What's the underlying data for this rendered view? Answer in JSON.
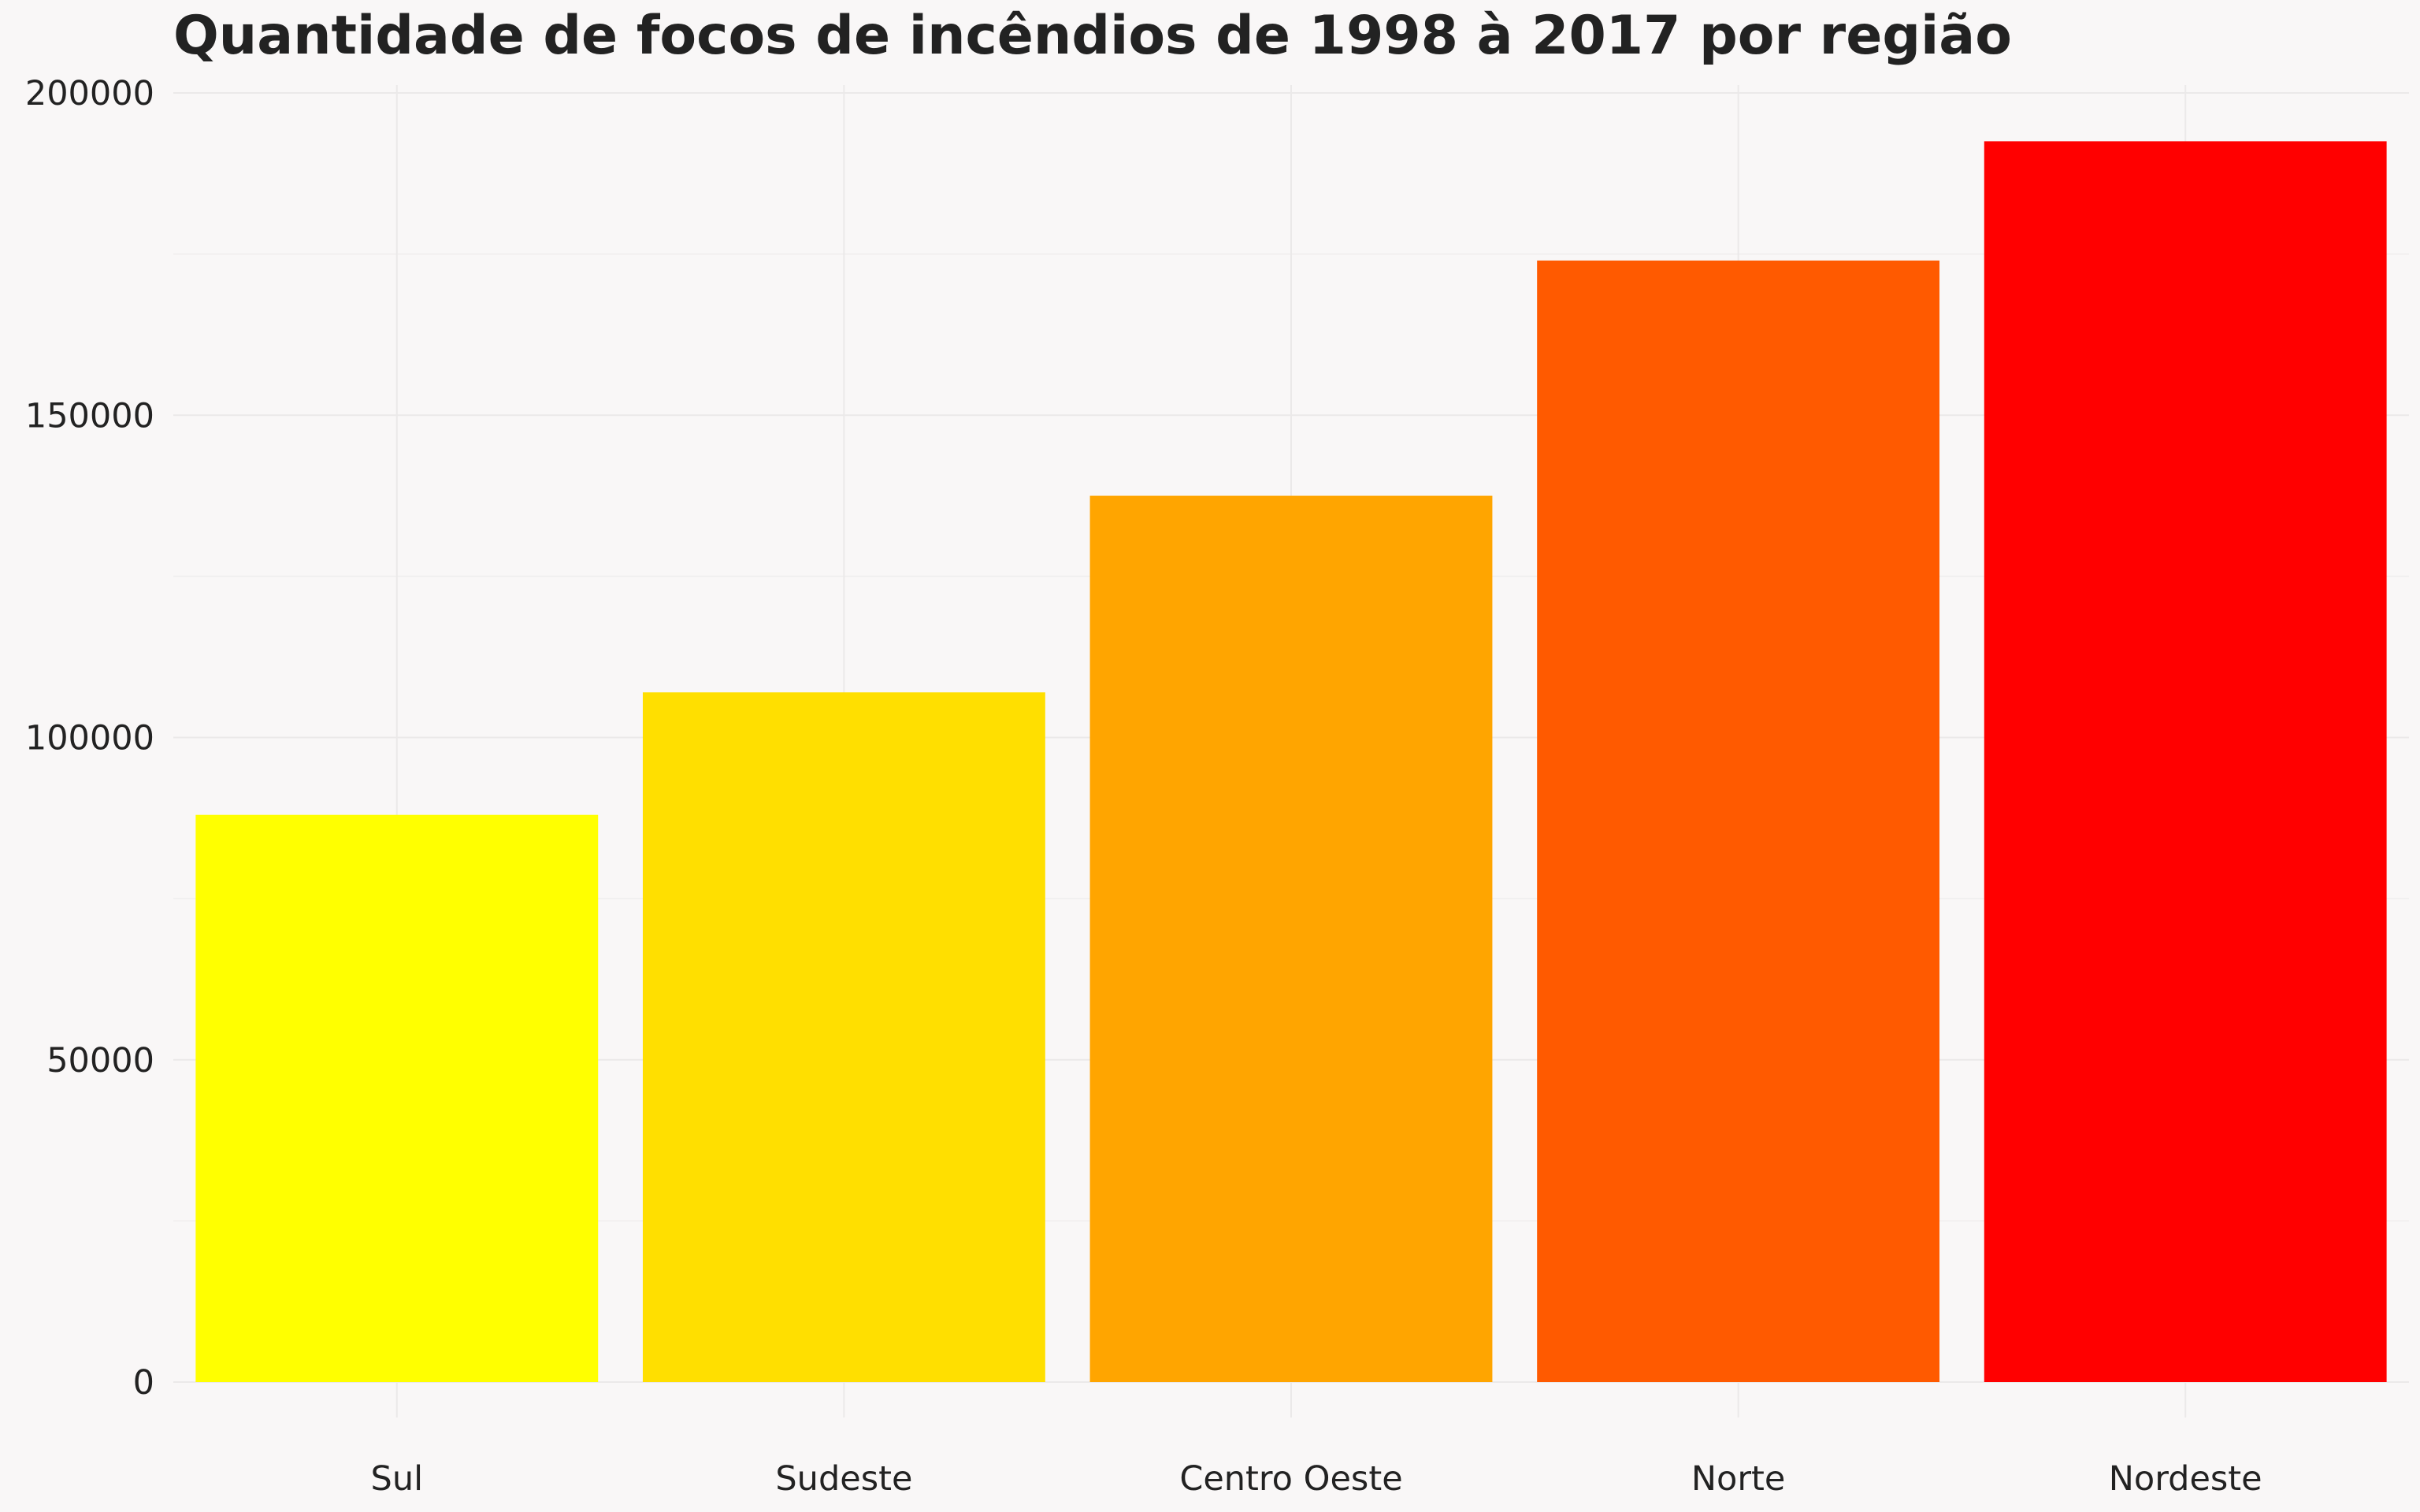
{
  "chart_data": {
    "type": "bar",
    "title": "Quantidade de focos de incêndios de 1998 à 2017 por região",
    "xlabel": "",
    "ylabel": "",
    "categories": [
      "Sul",
      "Sudeste",
      "Centro Oeste",
      "Norte",
      "Nordeste"
    ],
    "values": [
      88000,
      107000,
      137500,
      174000,
      192500
    ],
    "colors": [
      "#ffff00",
      "#ffdf00",
      "#ffa500",
      "#ff5a00",
      "#ff0000"
    ],
    "ylim": [
      0,
      200000
    ],
    "yticks": [
      "0",
      "50000",
      "100000",
      "150000",
      "200000"
    ],
    "grid": true,
    "legend": "none",
    "background": "#f9f7f7"
  }
}
